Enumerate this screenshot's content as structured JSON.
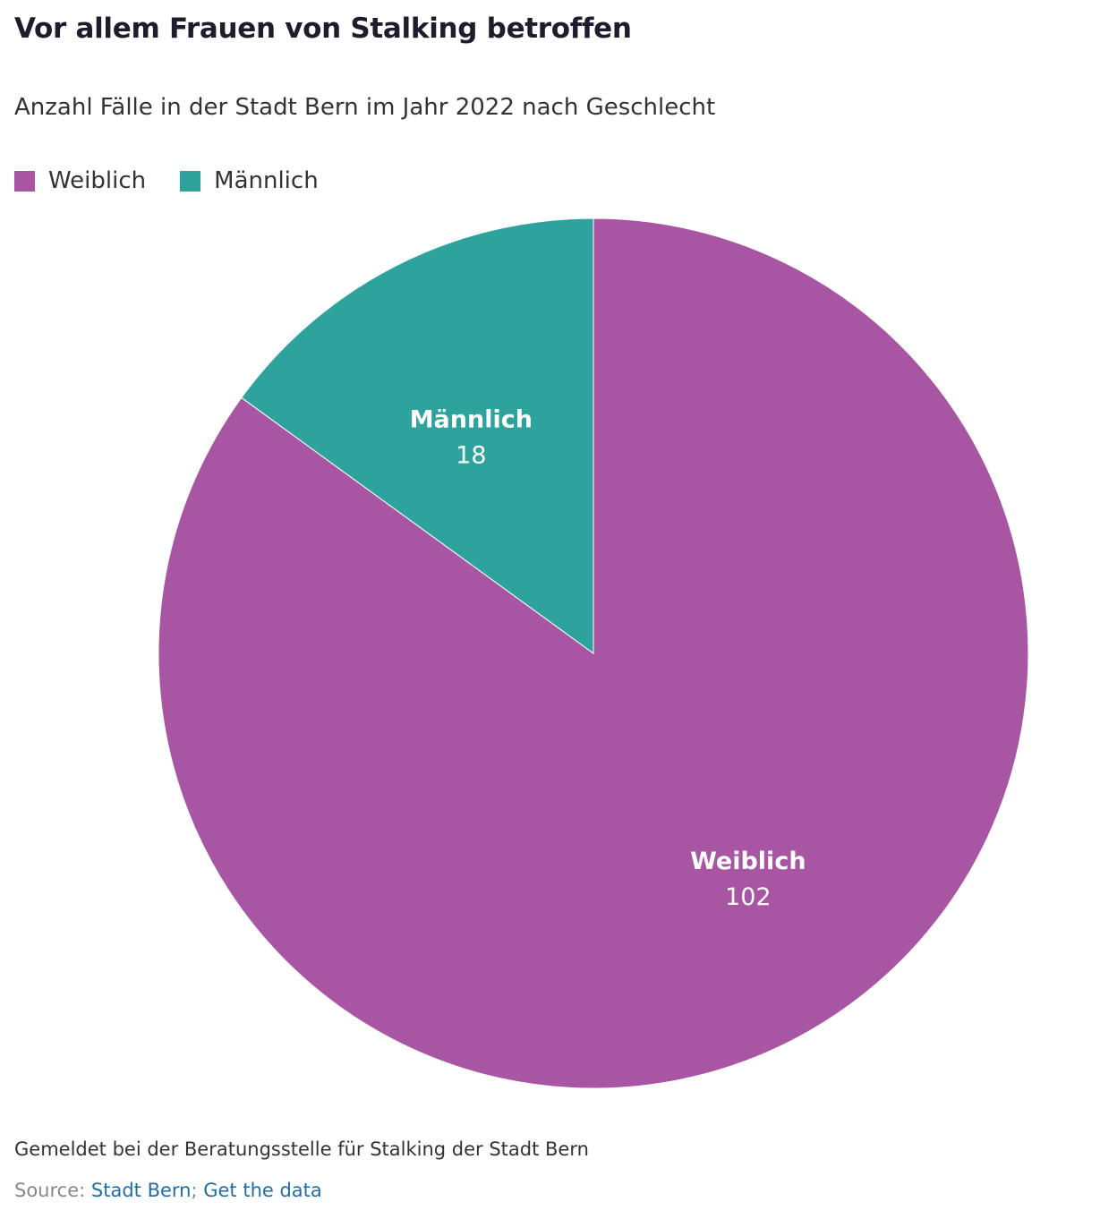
{
  "header": {
    "title": "Vor allem Frauen von Stalking betroffen",
    "subtitle": "Anzahl Fälle in der Stadt Bern im Jahr 2022 nach Geschlecht"
  },
  "legend": {
    "items": [
      {
        "label": "Weiblich",
        "color": "#a855a3"
      },
      {
        "label": "Männlich",
        "color": "#2ea39d"
      }
    ]
  },
  "chart_data": {
    "type": "pie",
    "title": "Vor allem Frauen von Stalking betroffen",
    "subtitle": "Anzahl Fälle in der Stadt Bern im Jahr 2022 nach Geschlecht",
    "legend_position": "top-left",
    "start_angle": "12 o'clock",
    "direction": "clockwise",
    "slices": [
      {
        "label": "Weiblich",
        "value": 102,
        "value_label": "102",
        "color": "#a855a3"
      },
      {
        "label": "Männlich",
        "value": 18,
        "value_label": "18",
        "color": "#2ea39d"
      }
    ]
  },
  "footer": {
    "note": "Gemeldet bei der Beratungsstelle für Stalking der Stadt Bern",
    "source_label": "Source: ",
    "source_link": "Stadt Bern",
    "separator": "; ",
    "data_link": "Get the data"
  }
}
